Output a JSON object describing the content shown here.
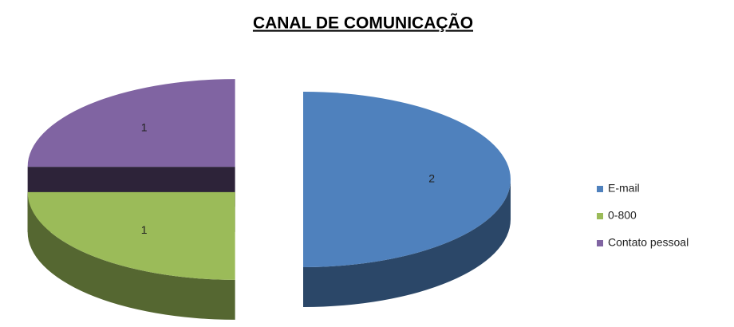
{
  "chart_data": {
    "type": "pie",
    "title": "CANAL DE COMUNICAÇÃO",
    "categories": [
      "E-mail",
      "0-800",
      "Contato pessoal"
    ],
    "values": [
      2,
      1,
      1
    ],
    "colors": [
      "#4f81bd",
      "#9bbb59",
      "#8064a2"
    ],
    "legend": "right"
  }
}
